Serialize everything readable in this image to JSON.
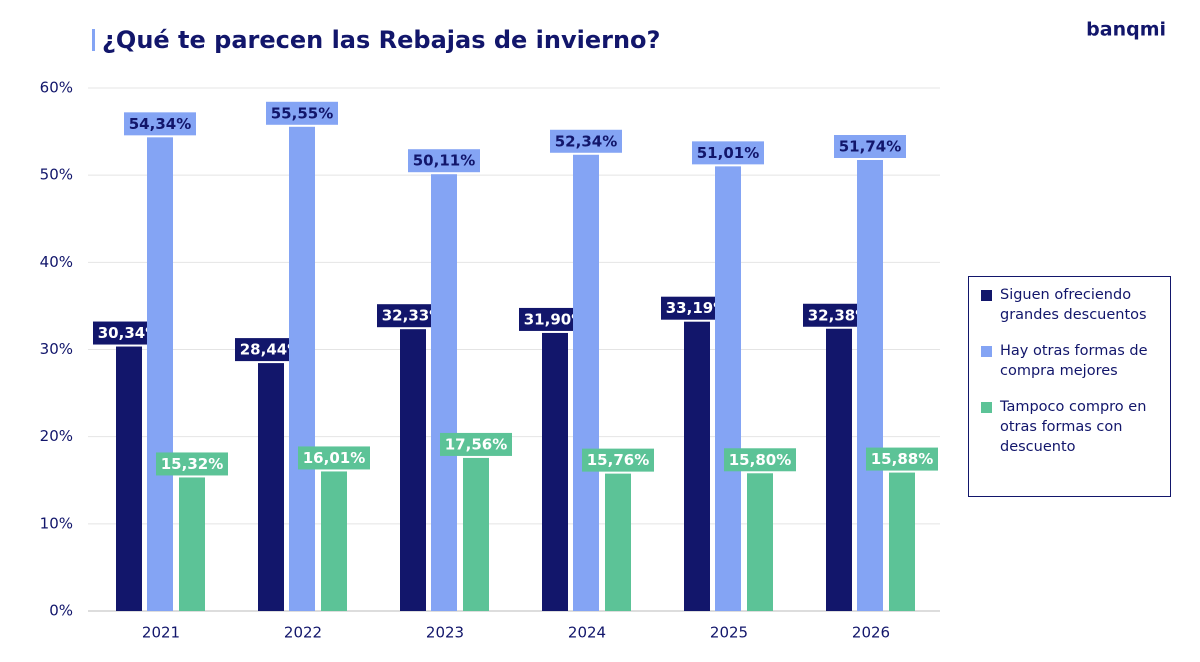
{
  "chart_data": {
    "type": "bar",
    "title": "¿Qué te parecen las Rebajas de invierno?",
    "logo": "banqmi",
    "categories": [
      "2021",
      "2022",
      "2023",
      "2024",
      "2025",
      "2026"
    ],
    "series": [
      {
        "name": "Siguen ofreciendo grandes descuentos",
        "color": "#12166b",
        "label_text_color": "#ffffff",
        "values": [
          30.34,
          28.44,
          32.33,
          31.9,
          33.19,
          32.38
        ],
        "value_labels": [
          "30,34%",
          "28,44%",
          "32,33%",
          "31,90%",
          "33,19%",
          "32,38%"
        ]
      },
      {
        "name": "Hay otras formas de compra mejores",
        "color": "#84a4f4",
        "label_text_color": "#12166b",
        "values": [
          54.34,
          55.55,
          50.11,
          52.34,
          51.01,
          51.74
        ],
        "value_labels": [
          "54,34%",
          "55,55%",
          "50,11%",
          "52,34%",
          "51,01%",
          "51,74%"
        ]
      },
      {
        "name": "Tampoco compro en otras formas con descuento",
        "color": "#5cc397",
        "label_text_color": "#ffffff",
        "values": [
          15.32,
          16.01,
          17.56,
          15.76,
          15.8,
          15.88
        ],
        "value_labels": [
          "15,32%",
          "16,01%",
          "17,56%",
          "15,76%",
          "15,80%",
          "15,88%"
        ]
      }
    ],
    "ylim": [
      0,
      60
    ],
    "yticks": [
      {
        "value": 0,
        "label": "0%"
      },
      {
        "value": 10,
        "label": "10%"
      },
      {
        "value": 20,
        "label": "20%"
      },
      {
        "value": 30,
        "label": "30%"
      },
      {
        "value": 40,
        "label": "40%"
      },
      {
        "value": 50,
        "label": "50%"
      },
      {
        "value": 60,
        "label": "60%"
      }
    ],
    "grid": true,
    "legend": "right"
  }
}
